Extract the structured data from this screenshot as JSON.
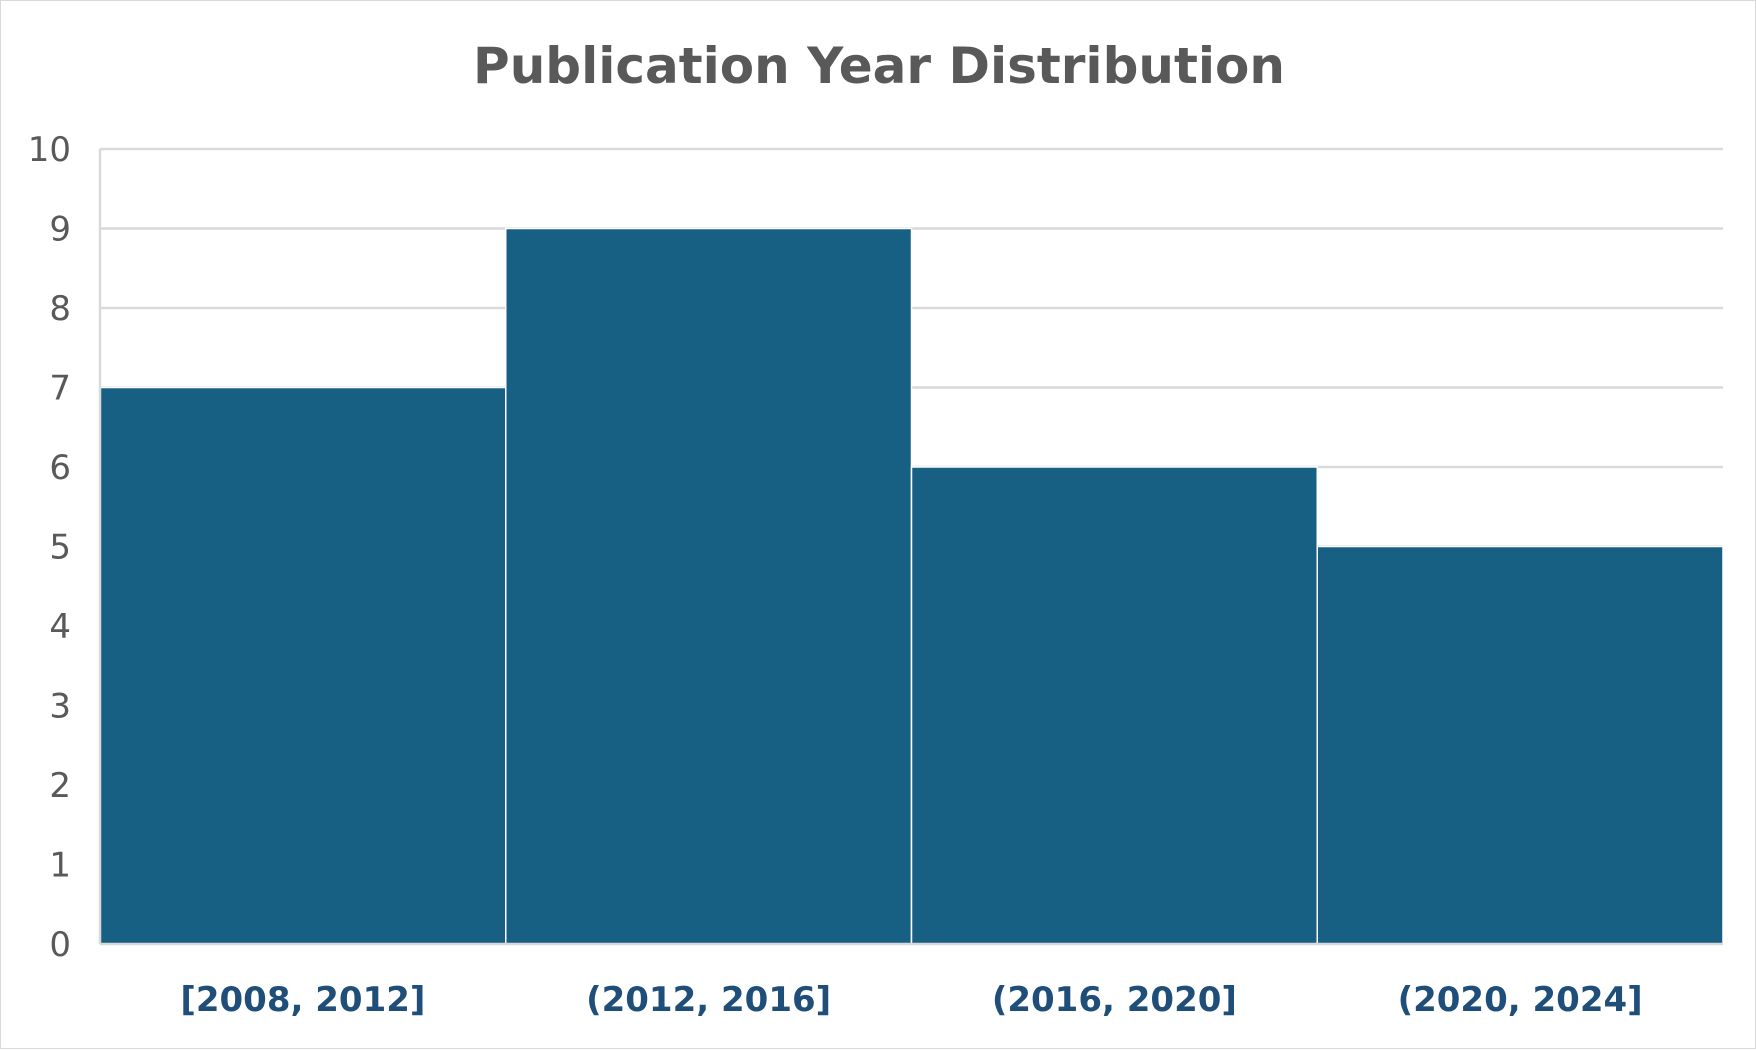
{
  "chart_data": {
    "type": "bar",
    "title": "Publication Year Distribution",
    "xlabel": "",
    "ylabel": "",
    "categories": [
      "[2008, 2012]",
      "(2012, 2016]",
      "(2016, 2020]",
      "(2020, 2024]"
    ],
    "values": [
      7,
      9,
      6,
      5
    ],
    "ylim": [
      0,
      10
    ],
    "yticks": [
      "0",
      "1",
      "2",
      "3",
      "4",
      "5",
      "6",
      "7",
      "8",
      "9",
      "10"
    ],
    "grid": true,
    "legend": "none",
    "colors": {
      "bar": "#186083",
      "title": "#595959",
      "x_tick": "#1f4e79",
      "y_tick": "#595959",
      "grid": "#d9d9d9"
    }
  }
}
